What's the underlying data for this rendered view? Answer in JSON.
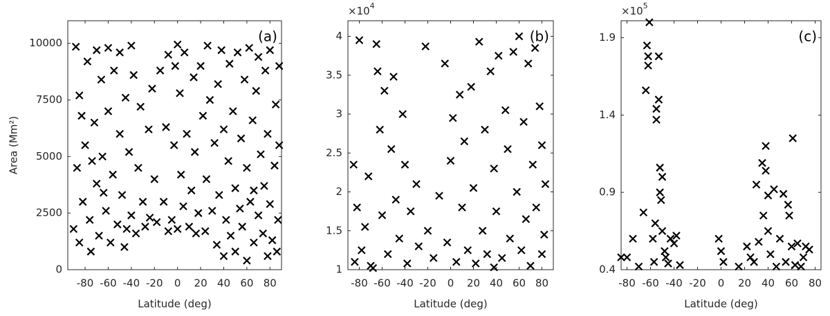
{
  "chart_data": [
    {
      "type": "scatter",
      "tag": "(a)",
      "ylabel": "Area (Mm²)",
      "xlabel": "Latitude (deg)",
      "marker": "x",
      "color": "#000000",
      "xlim": [
        -95,
        90
      ],
      "xticks": [
        -80,
        -60,
        -40,
        -20,
        0,
        20,
        40,
        60,
        80
      ],
      "ylim": [
        0,
        11000
      ],
      "yticks": [
        0,
        2500,
        5000,
        7500,
        10000
      ],
      "x": [
        -90,
        -88,
        -85,
        -85,
        -82,
        -80,
        -78,
        -76,
        -75,
        -72,
        -70,
        -70,
        -68,
        -66,
        -65,
        -62,
        -60,
        -60,
        -58,
        -56,
        -55,
        -52,
        -50,
        -50,
        -48,
        -46,
        -45,
        -42,
        -40,
        -40,
        -38,
        -36,
        -34,
        -32,
        -30,
        -28,
        -25,
        -24,
        -22,
        -20,
        -18,
        -15,
        -12,
        -10,
        -8,
        -5,
        -3,
        -2,
        0,
        0,
        2,
        3,
        5,
        6,
        8,
        10,
        12,
        14,
        15,
        18,
        20,
        22,
        24,
        25,
        26,
        28,
        30,
        32,
        34,
        35,
        36,
        38,
        40,
        40,
        42,
        44,
        45,
        46,
        48,
        50,
        50,
        52,
        54,
        55,
        56,
        58,
        60,
        60,
        62,
        63,
        65,
        66,
        68,
        70,
        70,
        72,
        74,
        75,
        76,
        78,
        78,
        80,
        80,
        82,
        84,
        85,
        86,
        87,
        88,
        88,
        -87,
        -83,
        -64,
        -44,
        -8,
        16,
        -74,
        66
      ],
      "values": [
        1800,
        9850,
        7700,
        1200,
        3000,
        5500,
        9200,
        2200,
        800,
        6500,
        9700,
        3800,
        1500,
        8400,
        5000,
        2600,
        9800,
        7000,
        1200,
        4200,
        8800,
        2000,
        6000,
        9600,
        3300,
        1000,
        7600,
        5200,
        2400,
        9900,
        8600,
        1600,
        4500,
        7200,
        3000,
        1900,
        6200,
        2300,
        8000,
        4000,
        2100,
        8800,
        3000,
        6300,
        9500,
        2200,
        5500,
        9000,
        9950,
        1800,
        7800,
        4200,
        2800,
        9600,
        6000,
        1900,
        3500,
        8500,
        5200,
        2500,
        9000,
        6800,
        1700,
        4000,
        9900,
        7500,
        2600,
        5600,
        1100,
        8200,
        3300,
        9700,
        600,
        6200,
        2200,
        4800,
        9100,
        1500,
        7000,
        3600,
        800,
        9600,
        2700,
        5800,
        1900,
        8400,
        400,
        4500,
        9800,
        3000,
        6600,
        1200,
        7900,
        2400,
        9400,
        5100,
        1600,
        3700,
        8800,
        600,
        6000,
        2900,
        9700,
        1300,
        4600,
        7300,
        800,
        2200,
        5500,
        9000,
        4500,
        6800,
        3400,
        1800,
        1700,
        1600,
        4800,
        3500
      ]
    },
    {
      "type": "scatter",
      "tag": "(b)",
      "xlabel": "Latitude (deg)",
      "marker": "x",
      "color": "#000000",
      "exponent_base": "×10",
      "exponent": "4",
      "xlim": [
        -90,
        90
      ],
      "xticks": [
        -80,
        -60,
        -40,
        -20,
        0,
        20,
        40,
        60,
        80
      ],
      "ylim": [
        10000,
        42000
      ],
      "yticks": [
        {
          "value": 10000,
          "label": "1"
        },
        {
          "value": 15000,
          "label": "1.5"
        },
        {
          "value": 20000,
          "label": "2"
        },
        {
          "value": 25000,
          "label": "2.5"
        },
        {
          "value": 30000,
          "label": "3"
        },
        {
          "value": 35000,
          "label": "3.5"
        },
        {
          "value": 40000,
          "label": "4"
        }
      ],
      "x": [
        -85,
        -84,
        -82,
        -80,
        -78,
        -75,
        -72,
        -70,
        -65,
        -64,
        -62,
        -60,
        -58,
        -55,
        -52,
        -50,
        -48,
        -45,
        -42,
        -40,
        -38,
        -35,
        -30,
        -28,
        -22,
        -20,
        -15,
        -10,
        -5,
        -3,
        0,
        2,
        5,
        8,
        10,
        12,
        15,
        18,
        20,
        22,
        25,
        28,
        30,
        32,
        35,
        38,
        40,
        42,
        45,
        48,
        50,
        52,
        55,
        58,
        60,
        62,
        64,
        66,
        68,
        70,
        72,
        74,
        75,
        78,
        80,
        80,
        82,
        83,
        -68,
        38
      ],
      "values": [
        23500,
        11000,
        18000,
        39500,
        12500,
        15500,
        22000,
        10500,
        39000,
        35500,
        28000,
        17000,
        33000,
        12000,
        25500,
        34800,
        19000,
        14000,
        30000,
        23500,
        10800,
        17500,
        21000,
        13000,
        38700,
        15000,
        11500,
        19500,
        36500,
        13500,
        24000,
        29500,
        11000,
        32500,
        18000,
        26500,
        12500,
        33500,
        20500,
        10800,
        39300,
        15000,
        28000,
        12000,
        35500,
        23000,
        17500,
        37500,
        11500,
        30500,
        25500,
        14000,
        38000,
        20000,
        40000,
        12500,
        29000,
        16500,
        36500,
        10500,
        23500,
        38500,
        18000,
        31000,
        12000,
        26000,
        14500,
        21000,
        10200,
        10300
      ]
    },
    {
      "type": "scatter",
      "tag": "(c)",
      "xlabel": "Latitude (deg)",
      "marker": "x",
      "color": "#000000",
      "exponent_base": "×10",
      "exponent": "5",
      "xlim": [
        -85,
        85
      ],
      "xticks": [
        -80,
        -60,
        -40,
        -20,
        0,
        20,
        40,
        60,
        80
      ],
      "ylim": [
        40000,
        201000
      ],
      "yticks": [
        {
          "value": 40000,
          "label": "0.4"
        },
        {
          "value": 90000,
          "label": "0.9"
        },
        {
          "value": 140000,
          "label": "1.4"
        },
        {
          "value": 190000,
          "label": "1.9"
        }
      ],
      "x": [
        -85,
        -80,
        -75,
        -70,
        -66,
        -64,
        -63,
        -62,
        -62,
        -61,
        -58,
        -57,
        -56,
        -55,
        -55,
        -53,
        -53,
        -52,
        -52,
        -51,
        -50,
        -50,
        -48,
        -47,
        -45,
        -43,
        -40,
        -38,
        -35,
        -2,
        0,
        2,
        15,
        22,
        25,
        28,
        30,
        32,
        35,
        36,
        38,
        38,
        40,
        40,
        42,
        45,
        47,
        50,
        53,
        55,
        57,
        58,
        60,
        61,
        63,
        65,
        68,
        72,
        75,
        70
      ],
      "values": [
        48000,
        48000,
        60000,
        42000,
        77000,
        156000,
        185000,
        178000,
        172000,
        200000,
        60000,
        45000,
        70000,
        137000,
        144000,
        150000,
        178000,
        106000,
        90000,
        85000,
        100000,
        65000,
        52000,
        48000,
        44000,
        60000,
        57000,
        62000,
        43000,
        60000,
        52000,
        45000,
        42000,
        55000,
        48000,
        45000,
        95000,
        58000,
        109000,
        75000,
        120000,
        104000,
        88000,
        65000,
        50000,
        92000,
        42000,
        60000,
        89000,
        45000,
        82000,
        75000,
        55000,
        125000,
        43000,
        57000,
        42000,
        55000,
        53000,
        48000
      ]
    }
  ]
}
